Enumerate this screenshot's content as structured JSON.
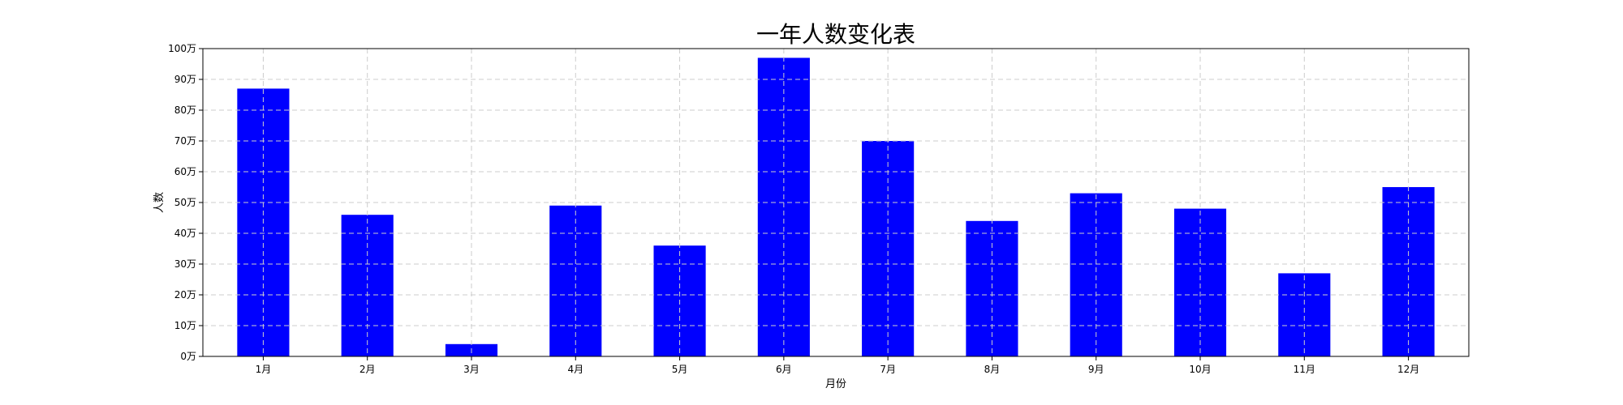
{
  "chart_data": {
    "type": "bar",
    "title": "一年人数变化表",
    "xlabel": "月份",
    "ylabel": "人数",
    "categories": [
      "1月",
      "2月",
      "3月",
      "4月",
      "5月",
      "6月",
      "7月",
      "8月",
      "9月",
      "10月",
      "11月",
      "12月"
    ],
    "values": [
      87,
      46,
      4,
      49,
      36,
      97,
      70,
      44,
      53,
      48,
      27,
      55
    ],
    "value_unit": "万",
    "ylim": [
      0,
      100
    ],
    "yticks": [
      0,
      10,
      20,
      30,
      40,
      50,
      60,
      70,
      80,
      90,
      100
    ],
    "ytick_labels": [
      "0万",
      "10万",
      "20万",
      "30万",
      "40万",
      "50万",
      "60万",
      "70万",
      "80万",
      "90万",
      "100万"
    ],
    "bar_color": "#0000ff",
    "grid": true
  }
}
